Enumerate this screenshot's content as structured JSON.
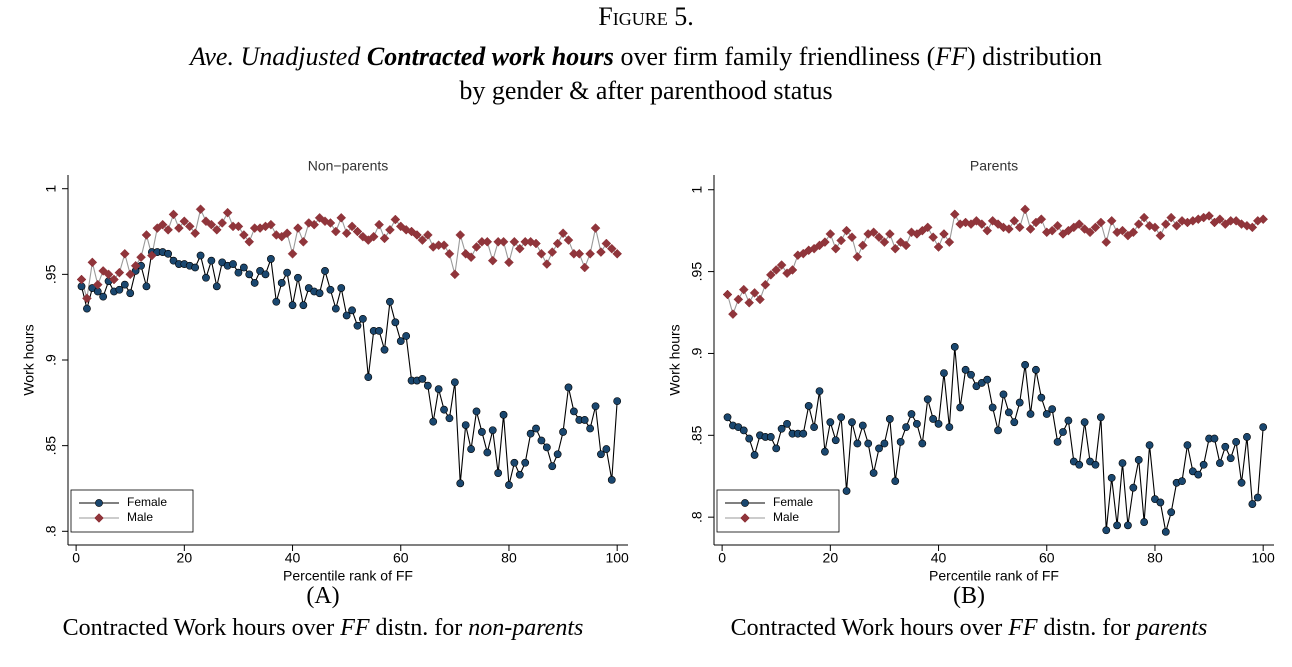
{
  "header": {
    "figure_label": "Figure 5.",
    "title": [
      "Ave. Unadjusted ",
      "Contracted work hours",
      " over firm family friendliness (",
      "FF",
      ") distribution"
    ],
    "subtitle": "by gender & after parenthood status"
  },
  "panels": [
    {
      "label": "(A)",
      "caption": [
        "Contracted Work hours over ",
        "FF",
        " distn. for ",
        "non-parents"
      ]
    },
    {
      "label": "(B)",
      "caption": [
        "Contracted Work hours over ",
        "FF",
        " distn. for ",
        "parents"
      ]
    }
  ],
  "chart_data": [
    {
      "type": "line",
      "title": "Non−parents",
      "xlabel": "Percentile rank of FF",
      "ylabel": "Work hours",
      "x": [
        1,
        2,
        3,
        4,
        5,
        6,
        7,
        8,
        9,
        10,
        11,
        12,
        13,
        14,
        15,
        16,
        17,
        18,
        19,
        20,
        21,
        22,
        23,
        24,
        25,
        26,
        27,
        28,
        29,
        30,
        31,
        32,
        33,
        34,
        35,
        36,
        37,
        38,
        39,
        40,
        41,
        42,
        43,
        44,
        45,
        46,
        47,
        48,
        49,
        50,
        51,
        52,
        53,
        54,
        55,
        56,
        57,
        58,
        59,
        60,
        61,
        62,
        63,
        64,
        65,
        66,
        67,
        68,
        69,
        70,
        71,
        72,
        73,
        74,
        75,
        76,
        77,
        78,
        79,
        80,
        81,
        82,
        83,
        84,
        85,
        86,
        87,
        88,
        89,
        90,
        91,
        92,
        93,
        94,
        95,
        96,
        97,
        98,
        99,
        100
      ],
      "series": [
        {
          "name": "Female",
          "color": "#1a476f",
          "line_color": "#000000",
          "marker": "circle",
          "values": [
            0.943,
            0.93,
            0.942,
            0.94,
            0.937,
            0.946,
            0.94,
            0.941,
            0.944,
            0.939,
            0.952,
            0.955,
            0.943,
            0.963,
            0.963,
            0.963,
            0.962,
            0.958,
            0.956,
            0.956,
            0.955,
            0.954,
            0.961,
            0.948,
            0.958,
            0.943,
            0.957,
            0.955,
            0.956,
            0.951,
            0.954,
            0.95,
            0.945,
            0.952,
            0.95,
            0.959,
            0.934,
            0.945,
            0.951,
            0.932,
            0.948,
            0.932,
            0.942,
            0.94,
            0.939,
            0.952,
            0.941,
            0.93,
            0.942,
            0.926,
            0.929,
            0.92,
            0.924,
            0.89,
            0.917,
            0.917,
            0.906,
            0.934,
            0.922,
            0.911,
            0.914,
            0.888,
            0.888,
            0.889,
            0.885,
            0.864,
            0.883,
            0.871,
            0.866,
            0.887,
            0.828,
            0.862,
            0.848,
            0.87,
            0.858,
            0.846,
            0.859,
            0.834,
            0.868,
            0.827,
            0.84,
            0.833,
            0.84,
            0.857,
            0.86,
            0.853,
            0.849,
            0.838,
            0.845,
            0.858,
            0.884,
            0.87,
            0.865,
            0.865,
            0.86,
            0.873,
            0.845,
            0.848,
            0.83,
            0.876
          ]
        },
        {
          "name": "Male",
          "color": "#90353b",
          "line_color": "#9a9a9a",
          "marker": "diamond",
          "values": [
            0.947,
            0.936,
            0.957,
            0.944,
            0.952,
            0.95,
            0.947,
            0.951,
            0.962,
            0.95,
            0.955,
            0.96,
            0.973,
            0.961,
            0.977,
            0.979,
            0.976,
            0.985,
            0.977,
            0.981,
            0.978,
            0.974,
            0.988,
            0.981,
            0.979,
            0.976,
            0.98,
            0.986,
            0.978,
            0.978,
            0.973,
            0.969,
            0.977,
            0.977,
            0.978,
            0.979,
            0.973,
            0.972,
            0.974,
            0.962,
            0.977,
            0.969,
            0.98,
            0.979,
            0.983,
            0.981,
            0.98,
            0.975,
            0.983,
            0.974,
            0.978,
            0.975,
            0.972,
            0.97,
            0.972,
            0.979,
            0.971,
            0.976,
            0.982,
            0.978,
            0.976,
            0.975,
            0.973,
            0.97,
            0.973,
            0.966,
            0.967,
            0.967,
            0.962,
            0.95,
            0.973,
            0.962,
            0.96,
            0.966,
            0.969,
            0.969,
            0.958,
            0.969,
            0.969,
            0.957,
            0.969,
            0.965,
            0.969,
            0.969,
            0.968,
            0.962,
            0.956,
            0.963,
            0.968,
            0.974,
            0.97,
            0.962,
            0.962,
            0.954,
            0.962,
            0.977,
            0.963,
            0.968,
            0.965,
            0.962
          ]
        }
      ],
      "xlim": [
        -1.5,
        102
      ],
      "ylim": [
        0.792,
        1.008
      ],
      "xticks": [
        0,
        20,
        40,
        60,
        80,
        100
      ],
      "yticks": [
        {
          "value": 0.8,
          "label": ".8"
        },
        {
          "value": 0.85,
          "label": ".85"
        },
        {
          "value": 0.9,
          "label": ".9"
        },
        {
          "value": 0.95,
          "label": ".95"
        },
        1
      ],
      "grid": false,
      "legend": "lower left"
    },
    {
      "type": "line",
      "title": "Parents",
      "xlabel": "Percentile rank of FF",
      "ylabel": "Work hours",
      "x": [
        1,
        2,
        3,
        4,
        5,
        6,
        7,
        8,
        9,
        10,
        11,
        12,
        13,
        14,
        15,
        16,
        17,
        18,
        19,
        20,
        21,
        22,
        23,
        24,
        25,
        26,
        27,
        28,
        29,
        30,
        31,
        32,
        33,
        34,
        35,
        36,
        37,
        38,
        39,
        40,
        41,
        42,
        43,
        44,
        45,
        46,
        47,
        48,
        49,
        50,
        51,
        52,
        53,
        54,
        55,
        56,
        57,
        58,
        59,
        60,
        61,
        62,
        63,
        64,
        65,
        66,
        67,
        68,
        69,
        70,
        71,
        72,
        73,
        74,
        75,
        76,
        77,
        78,
        79,
        80,
        81,
        82,
        83,
        84,
        85,
        86,
        87,
        88,
        89,
        90,
        91,
        92,
        93,
        94,
        95,
        96,
        97,
        98,
        99,
        100
      ],
      "series": [
        {
          "name": "Female",
          "color": "#1a476f",
          "line_color": "#000000",
          "marker": "circle",
          "values": [
            0.861,
            0.856,
            0.855,
            0.853,
            0.848,
            0.838,
            0.85,
            0.849,
            0.849,
            0.842,
            0.854,
            0.857,
            0.851,
            0.851,
            0.851,
            0.868,
            0.855,
            0.877,
            0.84,
            0.858,
            0.847,
            0.861,
            0.816,
            0.858,
            0.845,
            0.856,
            0.845,
            0.827,
            0.842,
            0.845,
            0.86,
            0.822,
            0.846,
            0.855,
            0.863,
            0.857,
            0.845,
            0.872,
            0.86,
            0.857,
            0.888,
            0.855,
            0.904,
            0.867,
            0.89,
            0.887,
            0.88,
            0.882,
            0.884,
            0.867,
            0.853,
            0.875,
            0.864,
            0.858,
            0.87,
            0.893,
            0.863,
            0.89,
            0.873,
            0.863,
            0.866,
            0.846,
            0.852,
            0.859,
            0.834,
            0.832,
            0.858,
            0.834,
            0.832,
            0.861,
            0.792,
            0.824,
            0.795,
            0.833,
            0.795,
            0.818,
            0.835,
            0.797,
            0.844,
            0.811,
            0.809,
            0.791,
            0.803,
            0.821,
            0.822,
            0.844,
            0.828,
            0.826,
            0.832,
            0.848,
            0.848,
            0.833,
            0.843,
            0.836,
            0.846,
            0.821,
            0.849,
            0.808,
            0.812,
            0.855
          ]
        },
        {
          "name": "Male",
          "color": "#90353b",
          "line_color": "#9a9a9a",
          "marker": "diamond",
          "values": [
            0.936,
            0.924,
            0.933,
            0.939,
            0.931,
            0.937,
            0.933,
            0.942,
            0.948,
            0.951,
            0.954,
            0.949,
            0.951,
            0.96,
            0.961,
            0.963,
            0.964,
            0.966,
            0.968,
            0.973,
            0.964,
            0.969,
            0.975,
            0.971,
            0.959,
            0.966,
            0.973,
            0.974,
            0.971,
            0.968,
            0.973,
            0.964,
            0.968,
            0.966,
            0.974,
            0.973,
            0.975,
            0.977,
            0.971,
            0.965,
            0.973,
            0.968,
            0.985,
            0.979,
            0.98,
            0.979,
            0.981,
            0.979,
            0.975,
            0.981,
            0.979,
            0.977,
            0.976,
            0.981,
            0.977,
            0.988,
            0.976,
            0.98,
            0.982,
            0.974,
            0.975,
            0.978,
            0.973,
            0.975,
            0.977,
            0.979,
            0.976,
            0.974,
            0.977,
            0.98,
            0.968,
            0.981,
            0.974,
            0.975,
            0.972,
            0.974,
            0.979,
            0.983,
            0.978,
            0.977,
            0.972,
            0.979,
            0.983,
            0.978,
            0.981,
            0.98,
            0.981,
            0.982,
            0.983,
            0.984,
            0.98,
            0.982,
            0.979,
            0.981,
            0.981,
            0.979,
            0.978,
            0.977,
            0.981,
            0.982
          ]
        }
      ],
      "xlim": [
        -1.5,
        102
      ],
      "ylim": [
        0.783,
        1.009
      ],
      "xticks": [
        0,
        20,
        40,
        60,
        80,
        100
      ],
      "yticks": [
        {
          "value": 0.8,
          "label": ".8"
        },
        {
          "value": 0.85,
          "label": ".85"
        },
        {
          "value": 0.9,
          "label": ".9"
        },
        {
          "value": 0.95,
          "label": ".95"
        },
        1
      ],
      "grid": false,
      "legend": "lower left"
    }
  ]
}
